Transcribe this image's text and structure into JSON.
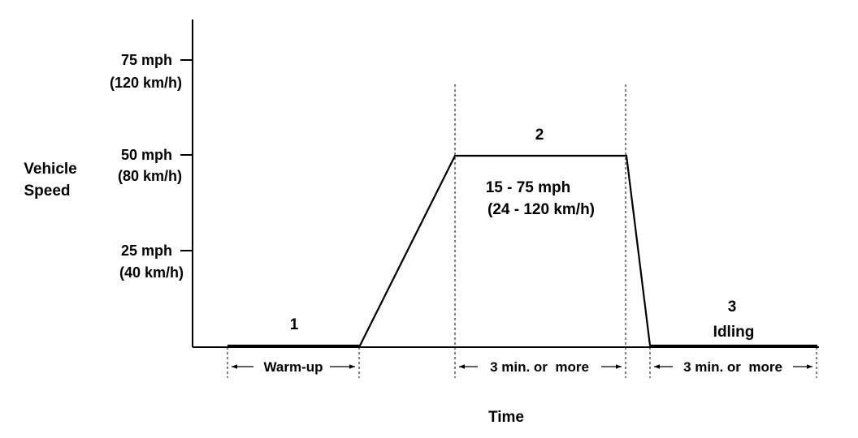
{
  "y_axis": {
    "label_line1": "Vehicle",
    "label_line2": "Speed",
    "ticks": [
      {
        "mph": 25,
        "label": "25 mph",
        "sublabel": "(40 km/h)"
      },
      {
        "mph": 50,
        "label": "50 mph",
        "sublabel": "(80 km/h)"
      },
      {
        "mph": 75,
        "label": "75 mph",
        "sublabel": "(120 km/h)"
      }
    ]
  },
  "x_axis": {
    "label": "Time"
  },
  "phases": {
    "one": {
      "number": "1",
      "duration": "Warm-up"
    },
    "two": {
      "number": "2",
      "range_line1": "15 - 75 mph",
      "range_line2": "(24 - 120 km/h)",
      "duration": "3 min. or  more"
    },
    "three": {
      "number": "3",
      "name": "Idling",
      "duration": "3 min. or  more"
    }
  }
}
